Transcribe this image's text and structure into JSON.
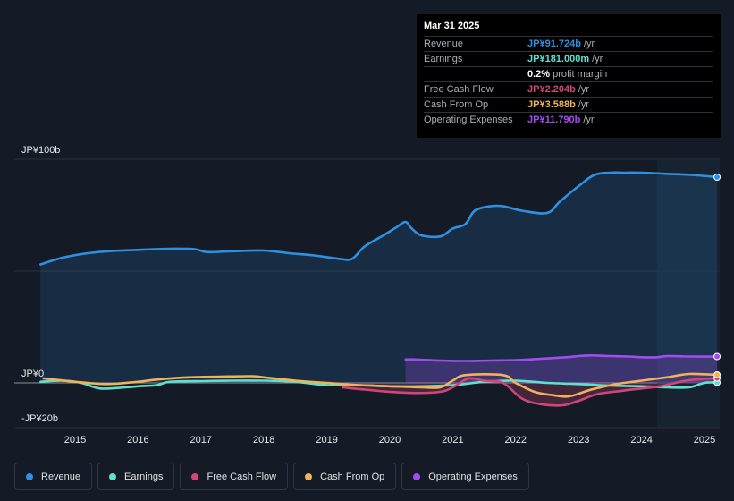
{
  "chart_data": {
    "type": "line",
    "currency_unit": "JP¥ billions",
    "y_ticks": [
      {
        "label": "JP¥100b",
        "value": 100
      },
      {
        "label": "JP¥0",
        "value": 0
      },
      {
        "label": "-JP¥20b",
        "value": -20
      }
    ],
    "ylim": [
      -20,
      100
    ],
    "xlim": [
      2014.4,
      2025.25
    ],
    "x_ticks": [
      {
        "label": "2015",
        "value": 2015
      },
      {
        "label": "2016",
        "value": 2016
      },
      {
        "label": "2017",
        "value": 2017
      },
      {
        "label": "2018",
        "value": 2018
      },
      {
        "label": "2019",
        "value": 2019
      },
      {
        "label": "2020",
        "value": 2020
      },
      {
        "label": "2021",
        "value": 2021
      },
      {
        "label": "2022",
        "value": 2022
      },
      {
        "label": "2023",
        "value": 2023
      },
      {
        "label": "2024",
        "value": 2024
      },
      {
        "label": "2025",
        "value": 2025
      }
    ],
    "forecast_start": 2024.25,
    "series": [
      {
        "name": "Revenue",
        "color": "#2e90e0",
        "fill": true,
        "points": [
          [
            2014.45,
            53
          ],
          [
            2014.8,
            56
          ],
          [
            2015.2,
            58
          ],
          [
            2015.6,
            59
          ],
          [
            2016.0,
            59.5
          ],
          [
            2016.5,
            60
          ],
          [
            2016.9,
            59.8
          ],
          [
            2017.1,
            58.5
          ],
          [
            2017.5,
            58.9
          ],
          [
            2018.0,
            59.2
          ],
          [
            2018.4,
            58
          ],
          [
            2018.8,
            57
          ],
          [
            2019.2,
            55.5
          ],
          [
            2019.4,
            55.5
          ],
          [
            2019.6,
            61
          ],
          [
            2019.9,
            66
          ],
          [
            2020.1,
            69.5
          ],
          [
            2020.25,
            72
          ],
          [
            2020.35,
            69
          ],
          [
            2020.5,
            66
          ],
          [
            2020.8,
            65.5
          ],
          [
            2021.0,
            69
          ],
          [
            2021.2,
            71
          ],
          [
            2021.35,
            77
          ],
          [
            2021.6,
            79
          ],
          [
            2021.8,
            79
          ],
          [
            2022.1,
            77
          ],
          [
            2022.5,
            76
          ],
          [
            2022.7,
            81
          ],
          [
            2023.0,
            88
          ],
          [
            2023.25,
            93
          ],
          [
            2023.5,
            94
          ],
          [
            2023.75,
            94
          ],
          [
            2024.0,
            94
          ],
          [
            2024.4,
            93.5
          ],
          [
            2024.8,
            93
          ],
          [
            2025.2,
            92
          ]
        ]
      },
      {
        "name": "Earnings",
        "color": "#5fe0cf",
        "fill": false,
        "points": [
          [
            2014.45,
            0.5
          ],
          [
            2014.8,
            1
          ],
          [
            2015.1,
            0
          ],
          [
            2015.4,
            -2.5
          ],
          [
            2015.8,
            -2
          ],
          [
            2016.0,
            -1.5
          ],
          [
            2016.3,
            -1
          ],
          [
            2016.5,
            0.5
          ],
          [
            2017.0,
            0.8
          ],
          [
            2017.5,
            1
          ],
          [
            2018.0,
            1
          ],
          [
            2018.5,
            0.5
          ],
          [
            2019.0,
            -1
          ],
          [
            2019.5,
            -1
          ],
          [
            2020.0,
            -1.5
          ],
          [
            2020.5,
            -1.5
          ],
          [
            2021.0,
            -1
          ],
          [
            2021.5,
            0.5
          ],
          [
            2022.0,
            1
          ],
          [
            2022.5,
            0
          ],
          [
            2023.0,
            -0.5
          ],
          [
            2023.5,
            -1.2
          ],
          [
            2024.0,
            -1.5
          ],
          [
            2024.4,
            -2
          ],
          [
            2024.75,
            -2
          ],
          [
            2025.0,
            0
          ],
          [
            2025.2,
            0.18
          ]
        ]
      },
      {
        "name": "Free Cash Flow",
        "color": "#d0467a",
        "fill": true,
        "points": [
          [
            2019.25,
            -2
          ],
          [
            2019.6,
            -3
          ],
          [
            2020.0,
            -4
          ],
          [
            2020.4,
            -4.5
          ],
          [
            2020.8,
            -4
          ],
          [
            2021.0,
            -2
          ],
          [
            2021.25,
            2
          ],
          [
            2021.5,
            1
          ],
          [
            2021.8,
            0
          ],
          [
            2022.1,
            -7
          ],
          [
            2022.4,
            -9.5
          ],
          [
            2022.75,
            -10
          ],
          [
            2023.0,
            -8
          ],
          [
            2023.3,
            -5
          ],
          [
            2023.7,
            -3.5
          ],
          [
            2024.0,
            -2.5
          ],
          [
            2024.3,
            -1.5
          ],
          [
            2024.7,
            1
          ],
          [
            2025.0,
            1.8
          ],
          [
            2025.2,
            2.2
          ]
        ]
      },
      {
        "name": "Cash From Op",
        "color": "#f0b25a",
        "fill": false,
        "points": [
          [
            2014.5,
            2
          ],
          [
            2015.0,
            0.5
          ],
          [
            2015.5,
            -0.5
          ],
          [
            2016.0,
            0.5
          ],
          [
            2016.3,
            1.5
          ],
          [
            2016.8,
            2.5
          ],
          [
            2017.3,
            2.8
          ],
          [
            2017.8,
            3
          ],
          [
            2018.0,
            2.5
          ],
          [
            2018.5,
            1
          ],
          [
            2019.0,
            0
          ],
          [
            2019.5,
            -1
          ],
          [
            2020.0,
            -1.5
          ],
          [
            2020.5,
            -2
          ],
          [
            2020.8,
            -2
          ],
          [
            2021.0,
            1
          ],
          [
            2021.2,
            3.5
          ],
          [
            2021.8,
            3.5
          ],
          [
            2022.0,
            0
          ],
          [
            2022.3,
            -4
          ],
          [
            2022.6,
            -5.5
          ],
          [
            2022.85,
            -6
          ],
          [
            2023.2,
            -3
          ],
          [
            2023.6,
            -0.5
          ],
          [
            2024.0,
            1
          ],
          [
            2024.4,
            2.5
          ],
          [
            2024.75,
            4
          ],
          [
            2025.2,
            3.6
          ]
        ]
      },
      {
        "name": "Operating Expenses",
        "color": "#a24cf0",
        "fill": true,
        "points": [
          [
            2020.25,
            10.5
          ],
          [
            2020.4,
            10.5
          ],
          [
            2020.8,
            10
          ],
          [
            2021.2,
            9.8
          ],
          [
            2021.6,
            10
          ],
          [
            2022.0,
            10.2
          ],
          [
            2022.4,
            10.8
          ],
          [
            2022.8,
            11.5
          ],
          [
            2023.0,
            12
          ],
          [
            2023.2,
            12.3
          ],
          [
            2023.5,
            12
          ],
          [
            2023.8,
            11.8
          ],
          [
            2024.0,
            11.5
          ],
          [
            2024.25,
            11.5
          ],
          [
            2024.4,
            12
          ],
          [
            2024.8,
            11.8
          ],
          [
            2025.2,
            11.8
          ]
        ]
      }
    ]
  },
  "tooltip": {
    "date": "Mar 31 2025",
    "rows": [
      {
        "label": "Revenue",
        "value": "JP¥91.724b",
        "unit": "/yr",
        "color": "#2e90e0"
      },
      {
        "label": "Earnings",
        "value": "JP¥181.000m",
        "unit": "/yr",
        "color": "#5fe0cf"
      },
      {
        "label": "",
        "value": "0.2%",
        "unit": "profit margin",
        "color": "#ffffff"
      },
      {
        "label": "Free Cash Flow",
        "value": "JP¥2.204b",
        "unit": "/yr",
        "color": "#d0467a"
      },
      {
        "label": "Cash From Op",
        "value": "JP¥3.588b",
        "unit": "/yr",
        "color": "#f0b25a"
      },
      {
        "label": "Operating Expenses",
        "value": "JP¥11.790b",
        "unit": "/yr",
        "color": "#a24cf0"
      }
    ]
  },
  "legend": [
    {
      "label": "Revenue",
      "color": "#2e90e0"
    },
    {
      "label": "Earnings",
      "color": "#5fe0cf"
    },
    {
      "label": "Free Cash Flow",
      "color": "#d0467a"
    },
    {
      "label": "Cash From Op",
      "color": "#f0b25a"
    },
    {
      "label": "Operating Expenses",
      "color": "#a24cf0"
    }
  ]
}
